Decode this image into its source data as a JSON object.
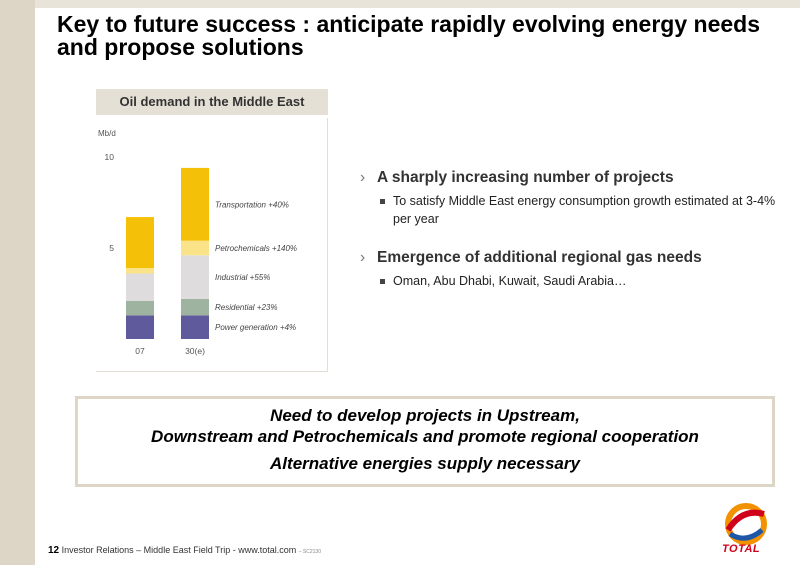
{
  "title": "Key to future success : anticipate rapidly evolving energy needs and propose solutions",
  "chart": {
    "header": "Oil demand in the Middle East"
  },
  "chart_data": {
    "type": "bar",
    "stacked": true,
    "ylabel": "Mb/d",
    "ylim": [
      0,
      10
    ],
    "yticks": [
      5,
      10
    ],
    "categories": [
      "07",
      "30(e)"
    ],
    "series": [
      {
        "name": "Power generation +4%",
        "color": "#5e5a9b",
        "values": [
          1.3,
          1.3
        ]
      },
      {
        "name": "Residential +23%",
        "color": "#9fb3a1",
        "values": [
          0.8,
          0.9
        ]
      },
      {
        "name": "Industrial +55%",
        "color": "#dedcdc",
        "values": [
          1.5,
          2.4
        ]
      },
      {
        "name": "Petrochemicals +140%",
        "color": "#fbe38a",
        "values": [
          0.3,
          0.8
        ]
      },
      {
        "name": "Transportation +40%",
        "color": "#f5c008",
        "values": [
          2.8,
          4.0
        ]
      }
    ]
  },
  "bullets": [
    {
      "title": "A sharply increasing number of projects",
      "sub": "To satisfy Middle East energy consumption growth estimated at 3-4% per year"
    },
    {
      "title": "Emergence of additional regional gas needs",
      "sub": "Oman, Abu Dhabi, Kuwait, Saudi Arabia…"
    }
  ],
  "callout": {
    "line1": "Need to develop projects in Upstream,",
    "line2": "Downstream and Petrochemicals and promote regional cooperation",
    "line3": "Alternative energies supply necessary"
  },
  "footer": {
    "page": "12",
    "text": "Investor Relations – Middle East Field Trip - www.total.com",
    "ref": "– SC2130"
  },
  "logo": {
    "word": "TOTAL"
  },
  "colors": {
    "band": "#ddd6c6",
    "logo_red": "#d0021b",
    "logo_blue": "#1f57a8",
    "logo_orange": "#f39200"
  }
}
